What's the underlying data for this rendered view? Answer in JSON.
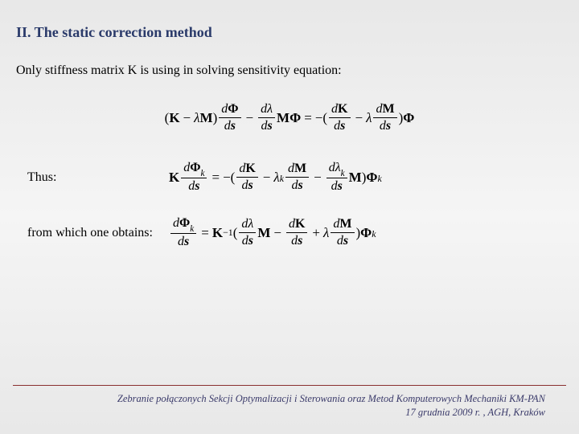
{
  "heading": "II. The static correction method",
  "intro": "Only stiffness matrix K is using in solving sensitivity equation:",
  "labels": {
    "thus": "Thus:",
    "from_which": "from which one obtains:"
  },
  "math": {
    "K": "K",
    "M": "M",
    "Phi": "Φ",
    "lambda": "λ",
    "d": "d",
    "s": "s",
    "k": "k",
    "minus": "−",
    "plus": "+",
    "eq": "=",
    "lp": "(",
    "rp": ")",
    "inv": "−1"
  },
  "footer": {
    "line1": "Zebranie połączonych Sekcji Optymalizacji i Sterowania oraz Metod Komputerowych Mechaniki KM-PAN",
    "line2": "17 grudnia 2009 r. , AGH, Kraków"
  },
  "colors": {
    "heading": "#2a3a6a",
    "footer_rule": "#8a3030",
    "footer_text": "#3a3a6a",
    "bg_top": "#e8e8e8",
    "bg_mid": "#f5f5f5"
  }
}
